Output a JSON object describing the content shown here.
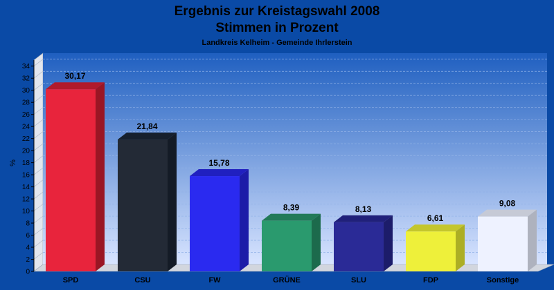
{
  "chart_data": {
    "type": "bar",
    "title": "Ergebnis zur Kreistagswahl 2008",
    "title2": "Stimmen in Prozent",
    "subtitle": "Landkreis Kelheim - Gemeinde Ihrlerstein",
    "ylabel": "%",
    "ylim": [
      0,
      35
    ],
    "ytick_step": 2,
    "grid": true,
    "categories": [
      "SPD",
      "CSU",
      "FW",
      "GRÜNE",
      "SLU",
      "FDP",
      "Sonstige"
    ],
    "values": [
      30.17,
      21.84,
      15.78,
      8.39,
      8.13,
      6.61,
      9.08
    ],
    "value_labels": [
      "30,17",
      "21,84",
      "15,78",
      "8,39",
      "8,13",
      "6,61",
      "9,08"
    ],
    "colors": [
      "#e8243c",
      "#232a36",
      "#2a2af0",
      "#2a9a6e",
      "#2a2a96",
      "#eef03a",
      "#eef2ff"
    ],
    "colors_top": [
      "#b01a2c",
      "#16202e",
      "#2020c0",
      "#227a58",
      "#20207a",
      "#c4c62c",
      "#c6cad6"
    ],
    "colors_side": [
      "#9a1624",
      "#141b26",
      "#1c1ca8",
      "#1c6a4c",
      "#1c1c6a",
      "#acae24",
      "#aeb2be"
    ]
  }
}
